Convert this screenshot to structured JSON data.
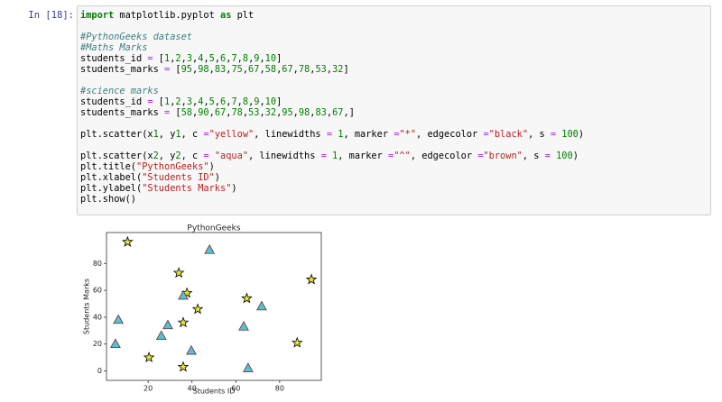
{
  "cell": {
    "prompt": "In [18]:",
    "code": [
      "import matplotlib.pyplot as plt",
      "",
      "#PythonGeeks dataset",
      "#Maths Marks",
      "students_id = [1,2,3,4,5,6,7,8,9,10]",
      "students_marks = [95,98,83,75,67,58,67,78,53,32]",
      "",
      "#science marks",
      "students_id = [1,2,3,4,5,6,7,8,9,10]",
      "students_marks = [58,90,67,78,53,32,95,98,83,67,]",
      "",
      "plt.scatter(x1, y1, c =\"yellow\", linewidths = 1, marker =\"*\", edgecolor =\"black\", s = 100)",
      "",
      "plt.scatter(x2, y2, c = \"aqua\", linewidths = 1, marker =\"^\", edgecolor =\"brown\", s = 100)",
      "plt.title(\"PythonGeeks\")",
      "plt.xlabel(\"Students ID\")",
      "plt.ylabel(\"Students Marks\")",
      "plt.show()"
    ]
  },
  "chart_data": {
    "type": "scatter",
    "title": "PythonGeeks",
    "x_label": "Students ID",
    "y_label": "Students Marks",
    "xlim": [
      1,
      99
    ],
    "ylim": [
      -7,
      103
    ],
    "xticks": [
      20,
      40,
      60,
      80
    ],
    "yticks": [
      0,
      20,
      40,
      60,
      80
    ],
    "series": [
      {
        "marker": "star",
        "color": "#e3e336",
        "edgecolor": "#000000",
        "x": [
          10.6,
          20.4,
          34,
          36,
          36,
          37.7,
          42.6,
          65,
          88,
          94.5
        ],
        "values": [
          96,
          10,
          73,
          3,
          36,
          58,
          46,
          54,
          21,
          68
        ]
      },
      {
        "marker": "triangle",
        "color": "#4fc4d2",
        "edgecolor": "#7a2a2a",
        "x": [
          6.4,
          5.1,
          26,
          29,
          36,
          39.7,
          48,
          63.6,
          65.6,
          71.8
        ],
        "values": [
          38,
          20,
          26,
          34,
          56,
          15,
          90,
          33,
          2,
          48
        ]
      }
    ]
  }
}
